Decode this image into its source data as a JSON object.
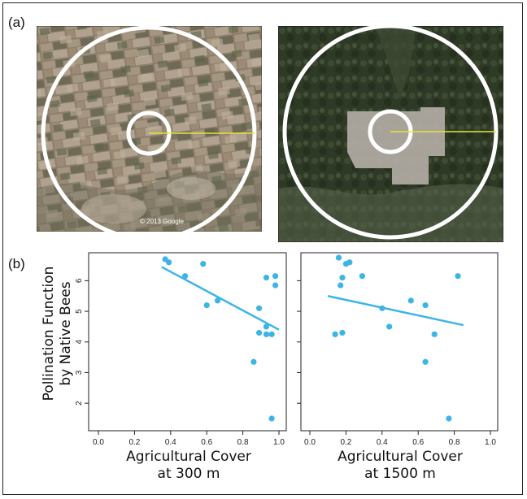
{
  "panel_labels": {
    "a": "(a)",
    "b": "(b)"
  },
  "photos": [
    {
      "credit": "© 2013 Google",
      "tone": "farmland"
    },
    {
      "credit": "",
      "tone": "forest"
    }
  ],
  "colors": {
    "points": "#3db4e6",
    "fit_line": "#3db4e6",
    "ring": "#ffffff",
    "radius_line": "#e6e632"
  },
  "chart_data": [
    {
      "type": "scatter",
      "title": "",
      "xlabel": [
        "Agricultural Cover",
        "at 300 m"
      ],
      "ylabel": [
        "Pollination Function",
        "by Native Bees"
      ],
      "xlim": [
        0,
        1
      ],
      "ylim": [
        1.4,
        7
      ],
      "xticks": [
        "0.0",
        "0.2",
        "0.4",
        "0.6",
        "0.8",
        "1.0"
      ],
      "yticks": [
        "2",
        "3",
        "4",
        "5",
        "6"
      ],
      "points": [
        {
          "x": 0.37,
          "y": 6.7
        },
        {
          "x": 0.39,
          "y": 6.6
        },
        {
          "x": 0.48,
          "y": 6.15
        },
        {
          "x": 0.58,
          "y": 6.55
        },
        {
          "x": 0.6,
          "y": 5.2
        },
        {
          "x": 0.66,
          "y": 5.35
        },
        {
          "x": 0.86,
          "y": 3.35
        },
        {
          "x": 0.89,
          "y": 5.1
        },
        {
          "x": 0.89,
          "y": 4.3
        },
        {
          "x": 0.93,
          "y": 6.1
        },
        {
          "x": 0.93,
          "y": 4.5
        },
        {
          "x": 0.93,
          "y": 4.25
        },
        {
          "x": 0.96,
          "y": 4.25
        },
        {
          "x": 0.98,
          "y": 6.15
        },
        {
          "x": 0.98,
          "y": 5.85
        },
        {
          "x": 0.96,
          "y": 1.5
        }
      ],
      "fit": {
        "x": [
          0.35,
          1.0
        ],
        "y": [
          6.45,
          4.4
        ]
      }
    },
    {
      "type": "scatter",
      "title": "",
      "xlabel": [
        "Agricultural Cover",
        "at 1500 m"
      ],
      "ylabel": [],
      "xlim": [
        0,
        1
      ],
      "ylim": [
        1.4,
        7
      ],
      "xticks": [
        "0.0",
        "0.2",
        "0.4",
        "0.6",
        "0.8",
        "1.0"
      ],
      "yticks": [],
      "points": [
        {
          "x": 0.16,
          "y": 6.75
        },
        {
          "x": 0.2,
          "y": 6.55
        },
        {
          "x": 0.22,
          "y": 6.6
        },
        {
          "x": 0.29,
          "y": 6.15
        },
        {
          "x": 0.18,
          "y": 6.1
        },
        {
          "x": 0.17,
          "y": 5.85
        },
        {
          "x": 0.14,
          "y": 4.25
        },
        {
          "x": 0.18,
          "y": 4.3
        },
        {
          "x": 0.4,
          "y": 5.1
        },
        {
          "x": 0.44,
          "y": 4.5
        },
        {
          "x": 0.56,
          "y": 5.35
        },
        {
          "x": 0.64,
          "y": 5.2
        },
        {
          "x": 0.64,
          "y": 3.35
        },
        {
          "x": 0.69,
          "y": 4.25
        },
        {
          "x": 0.82,
          "y": 6.15
        },
        {
          "x": 0.77,
          "y": 1.5
        }
      ],
      "fit": {
        "x": [
          0.1,
          0.85
        ],
        "y": [
          5.5,
          4.55
        ]
      }
    }
  ]
}
